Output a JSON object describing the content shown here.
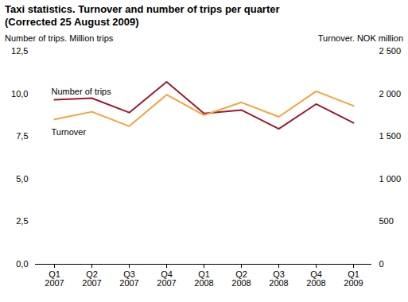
{
  "chart_data": {
    "type": "line",
    "title": "Taxi statistics. Turnover and number of trips per quarter",
    "subtitle": "(Corrected 25 August 2009)",
    "y_label": "Number of trips. Million trips",
    "y2_label": "Turnover. NOK million",
    "categories": [
      "Q1\n2007",
      "Q2\n2007",
      "Q3\n2007",
      "Q4\n2007",
      "Q1\n2008",
      "Q2\n2008",
      "Q3\n2008",
      "Q4\n2008",
      "Q1\n2009"
    ],
    "series": [
      {
        "name": "Number of trips",
        "color": "#9b1b2c",
        "values": [
          9.65,
          9.75,
          8.9,
          10.7,
          8.85,
          9.05,
          7.95,
          9.4,
          8.3
        ]
      },
      {
        "name": "Turnover",
        "color": "#f5a33a",
        "axis": "y2",
        "values": [
          1700,
          1790,
          1620,
          1990,
          1750,
          1900,
          1730,
          2030,
          1860
        ]
      }
    ],
    "ylim": [
      0,
      12.5
    ],
    "yticks": [
      {
        "value": 0,
        "label": "0,0"
      },
      {
        "value": 2.5,
        "label": "2,5"
      },
      {
        "value": 5,
        "label": "5,0"
      },
      {
        "value": 7.5,
        "label": "7,5"
      },
      {
        "value": 10,
        "label": "10,0"
      },
      {
        "value": 12.5,
        "label": "12,5"
      }
    ],
    "y2lim": [
      0,
      2500
    ],
    "y2ticks": [
      0,
      500,
      {
        "value": 1000,
        "label": "1 000"
      },
      {
        "value": 1500,
        "label": "1 500"
      },
      {
        "value": 2000,
        "label": "2 000"
      },
      {
        "value": 2500,
        "label": "2 500"
      }
    ],
    "grid": false
  }
}
